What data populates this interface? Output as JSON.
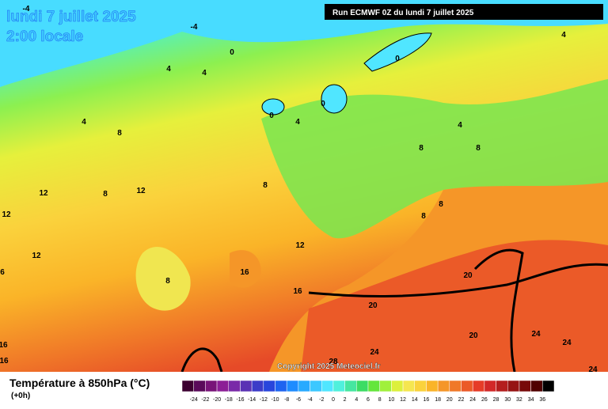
{
  "map": {
    "title": "lundi 7 juillet 2025",
    "subtitle": "2:00 locale",
    "run": "Run ECMWF 0Z du lundi 7 juillet 2025",
    "copyright": "Copyright 2025 Meteociel.fr",
    "contour_labels": [
      -4,
      -4,
      0,
      0,
      0,
      0,
      4,
      4,
      4,
      4,
      4,
      4,
      8,
      8,
      8,
      8,
      8,
      8,
      8,
      8,
      12,
      12,
      12,
      12,
      12,
      16,
      16,
      16,
      16,
      20,
      20,
      20,
      24,
      24,
      24,
      24,
      28,
      6
    ],
    "legend": {
      "title": "Température à 850hPa (°C)",
      "lead": "(+0h)",
      "ticks": [
        -24,
        -22,
        -20,
        -18,
        -16,
        -14,
        -12,
        -10,
        -8,
        -6,
        -4,
        -2,
        0,
        2,
        4,
        6,
        8,
        10,
        12,
        14,
        16,
        18,
        20,
        22,
        24,
        26,
        28,
        30,
        32,
        34,
        36
      ],
      "colors": [
        "#3c0030",
        "#5a0a5a",
        "#781478",
        "#8c1e96",
        "#7a2aa8",
        "#5a32b4",
        "#3c3cc8",
        "#2846dc",
        "#1e64f0",
        "#1e8cff",
        "#28aaff",
        "#3cc8ff",
        "#50e6ff",
        "#50f0dc",
        "#46e6a0",
        "#3cdc64",
        "#64e63c",
        "#a0f03c",
        "#dcf03c",
        "#f5e650",
        "#fad23c",
        "#fab428",
        "#f59628",
        "#f07828",
        "#eb5a28",
        "#e63c28",
        "#d22828",
        "#b41e1e",
        "#961414",
        "#780a0a",
        "#500000",
        "#000000"
      ]
    }
  }
}
